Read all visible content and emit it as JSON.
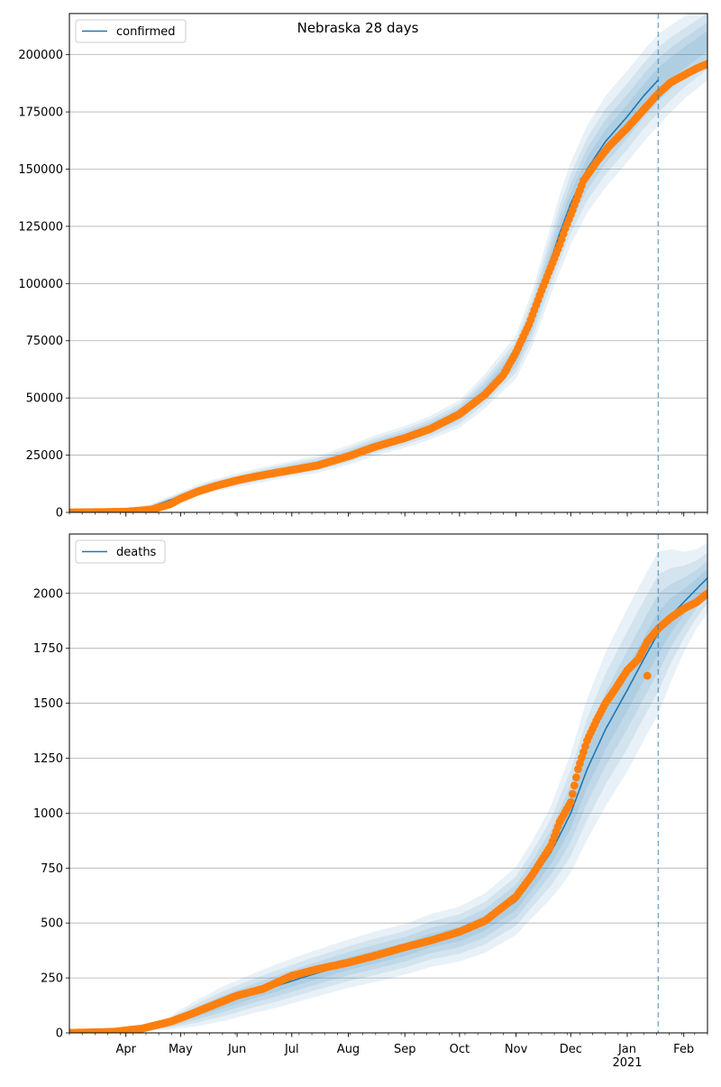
{
  "figure": {
    "suptitle": "Nebraska 28 days"
  },
  "colors": {
    "model_line": "#1f77b4",
    "band_fill": "#1f77b4",
    "observed": "#ff7f0e",
    "grid": "#b0b0b0",
    "forecast_marker": "#1f77b4"
  },
  "x_axis": {
    "start": "2020-03-01",
    "end": "2021-02-14",
    "ticks": [
      {
        "date": "2020-04-01",
        "label": "Apr"
      },
      {
        "date": "2020-05-01",
        "label": "May"
      },
      {
        "date": "2020-06-01",
        "label": "Jun"
      },
      {
        "date": "2020-07-01",
        "label": "Jul"
      },
      {
        "date": "2020-08-01",
        "label": "Aug"
      },
      {
        "date": "2020-09-01",
        "label": "Sep"
      },
      {
        "date": "2020-10-01",
        "label": "Oct"
      },
      {
        "date": "2020-11-01",
        "label": "Nov"
      },
      {
        "date": "2020-12-01",
        "label": "Dec"
      },
      {
        "date": "2021-01-01",
        "label": "Jan"
      },
      {
        "date": "2021-02-01",
        "label": "Feb"
      }
    ],
    "year_label": "2021",
    "forecast_date": "2021-01-18"
  },
  "chart_data": [
    {
      "type": "line",
      "legend": "confirmed",
      "legend_position": "top-left",
      "grid": "horizontal",
      "ylim": [
        0,
        218000
      ],
      "yticks": [
        0,
        25000,
        50000,
        75000,
        100000,
        125000,
        150000,
        175000,
        200000
      ],
      "model": {
        "name": "confirmed",
        "x": [
          "2020-03-01",
          "2020-03-20",
          "2020-04-01",
          "2020-04-15",
          "2020-05-01",
          "2020-05-15",
          "2020-06-01",
          "2020-06-15",
          "2020-07-01",
          "2020-07-15",
          "2020-08-01",
          "2020-08-15",
          "2020-09-01",
          "2020-09-15",
          "2020-10-01",
          "2020-10-15",
          "2020-11-01",
          "2020-11-10",
          "2020-11-20",
          "2020-11-25",
          "2020-12-01",
          "2020-12-10",
          "2020-12-20",
          "2021-01-01",
          "2021-01-10",
          "2021-01-18"
        ],
        "y": [
          0,
          300,
          800,
          2500,
          7000,
          11000,
          14000,
          16500,
          19000,
          21000,
          25000,
          29000,
          33000,
          37000,
          43000,
          53000,
          68000,
          85000,
          110000,
          122000,
          135000,
          150000,
          162000,
          173000,
          182000,
          189000
        ],
        "band_half_width": [
          0,
          300,
          600,
          1200,
          2000,
          2500,
          3000,
          3300,
          3500,
          3800,
          4200,
          4500,
          4800,
          5200,
          6000,
          7500,
          9500,
          12000,
          15000,
          17000,
          18000,
          19000,
          20000,
          20000,
          20000,
          20000
        ]
      },
      "forecast_band": {
        "x": [
          "2021-01-18",
          "2021-01-25",
          "2021-02-01",
          "2021-02-08",
          "2021-02-14"
        ],
        "y": [
          189000,
          194000,
          198500,
          202500,
          206000
        ],
        "band_half_width": [
          20000,
          19000,
          18000,
          17500,
          17000
        ]
      },
      "observed": {
        "name": "confirmed observed",
        "x": [
          "2020-03-01",
          "2020-03-15",
          "2020-04-01",
          "2020-04-15",
          "2020-04-25",
          "2020-05-01",
          "2020-05-10",
          "2020-05-20",
          "2020-06-01",
          "2020-06-10",
          "2020-06-20",
          "2020-07-01",
          "2020-07-15",
          "2020-08-01",
          "2020-08-15",
          "2020-09-01",
          "2020-09-15",
          "2020-10-01",
          "2020-10-15",
          "2020-10-25",
          "2020-11-01",
          "2020-11-08",
          "2020-11-15",
          "2020-11-20",
          "2020-11-25",
          "2020-11-28",
          "2020-12-01",
          "2020-12-08",
          "2020-12-15",
          "2020-12-22",
          "2021-01-01",
          "2021-01-10",
          "2021-01-18",
          "2021-01-25",
          "2021-02-01",
          "2021-02-08",
          "2021-02-14"
        ],
        "y": [
          0,
          100,
          300,
          1200,
          3500,
          6000,
          9000,
          11500,
          14000,
          15500,
          17000,
          18500,
          20500,
          24500,
          28500,
          32500,
          36500,
          43000,
          51500,
          60000,
          70000,
          82000,
          97000,
          107000,
          117000,
          124000,
          130000,
          145000,
          153000,
          160000,
          168000,
          176000,
          183000,
          188000,
          191000,
          194000,
          196000
        ]
      }
    },
    {
      "type": "line",
      "legend": "deaths",
      "legend_position": "top-left",
      "grid": "horizontal",
      "ylim": [
        0,
        2270
      ],
      "yticks": [
        0,
        250,
        500,
        750,
        1000,
        1250,
        1500,
        1750,
        2000
      ],
      "model": {
        "name": "deaths",
        "x": [
          "2020-03-01",
          "2020-03-25",
          "2020-04-10",
          "2020-04-25",
          "2020-05-10",
          "2020-05-25",
          "2020-06-10",
          "2020-06-25",
          "2020-07-10",
          "2020-08-01",
          "2020-08-15",
          "2020-09-01",
          "2020-09-15",
          "2020-10-01",
          "2020-10-15",
          "2020-11-01",
          "2020-11-10",
          "2020-11-20",
          "2020-11-25",
          "2020-12-01",
          "2020-12-10",
          "2020-12-20",
          "2021-01-01",
          "2021-01-10",
          "2021-01-18",
          "2021-01-25",
          "2021-02-01",
          "2021-02-08",
          "2021-02-14"
        ],
        "y": [
          0,
          0,
          15,
          45,
          90,
          135,
          180,
          220,
          260,
          315,
          345,
          380,
          420,
          450,
          500,
          600,
          700,
          820,
          900,
          1000,
          1200,
          1380,
          1560,
          1700,
          1820,
          1900,
          1960,
          2020,
          2070
        ],
        "band_half_width": [
          0,
          0,
          10,
          30,
          60,
          80,
          90,
          100,
          105,
          110,
          115,
          115,
          120,
          125,
          135,
          155,
          175,
          210,
          240,
          270,
          320,
          350,
          370,
          370,
          370,
          300,
          230,
          180,
          160
        ]
      },
      "observed": {
        "name": "deaths observed",
        "x": [
          "2020-03-01",
          "2020-03-25",
          "2020-04-10",
          "2020-04-25",
          "2020-05-05",
          "2020-05-20",
          "2020-06-01",
          "2020-06-15",
          "2020-07-01",
          "2020-07-15",
          "2020-08-01",
          "2020-08-15",
          "2020-09-01",
          "2020-09-15",
          "2020-10-01",
          "2020-10-15",
          "2020-11-01",
          "2020-11-10",
          "2020-11-20",
          "2020-11-25",
          "2020-12-01",
          "2020-12-05",
          "2020-12-10",
          "2020-12-15",
          "2020-12-20",
          "2020-12-25",
          "2021-01-01",
          "2021-01-07",
          "2021-01-12",
          "2021-01-18",
          "2021-01-25",
          "2021-02-01",
          "2021-02-08",
          "2021-02-14"
        ],
        "y": [
          0,
          5,
          20,
          50,
          80,
          130,
          170,
          200,
          260,
          290,
          320,
          350,
          390,
          420,
          460,
          510,
          620,
          720,
          850,
          960,
          1050,
          1200,
          1330,
          1420,
          1500,
          1560,
          1650,
          1700,
          1780,
          1840,
          1890,
          1930,
          1960,
          2000
        ]
      },
      "outliers": {
        "x": [
          "2021-01-12"
        ],
        "y": [
          1625
        ]
      }
    }
  ]
}
